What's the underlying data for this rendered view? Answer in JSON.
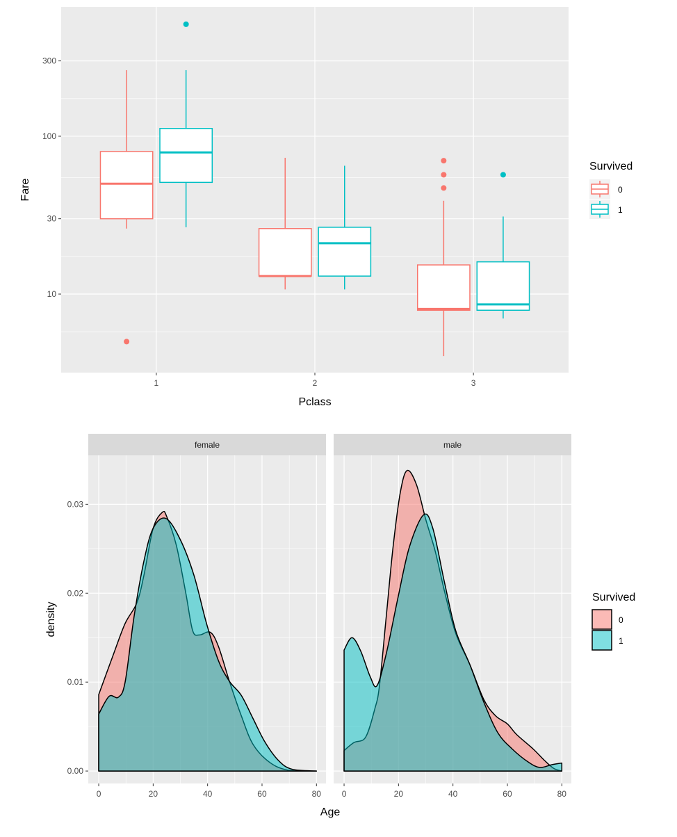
{
  "chart_data": [
    {
      "type": "boxplot",
      "xlabel": "Pclass",
      "ylabel": "Fare",
      "y_scale": "log10",
      "ylim": [
        3.18,
        659
      ],
      "y_breaks": [
        10,
        30,
        100,
        300
      ],
      "y_tick_labels": [
        "10",
        "30",
        "100",
        "300"
      ],
      "categories": [
        "1",
        "2",
        "3"
      ],
      "grid": true,
      "legend": {
        "title": "Survived",
        "position": "right",
        "entries": [
          "0",
          "1"
        ]
      },
      "colors": {
        "0": "#F8766D",
        "1": "#00BFC4"
      },
      "series": [
        {
          "name": "0",
          "boxes": [
            {
              "category": "1",
              "lower": 26,
              "q1": 30,
              "median": 50,
              "q3": 80,
              "upper": 262,
              "outliers": [
                5.0
              ]
            },
            {
              "category": "2",
              "lower": 10.7,
              "q1": 13,
              "median": 13,
              "q3": 26,
              "upper": 73,
              "outliers": []
            },
            {
              "category": "3",
              "lower": 4.05,
              "q1": 7.9,
              "median": 8.05,
              "q3": 15.3,
              "upper": 39,
              "outliers": [
                47,
                57,
                70
              ]
            }
          ]
        },
        {
          "name": "1",
          "boxes": [
            {
              "category": "1",
              "lower": 26.5,
              "q1": 51,
              "median": 79,
              "q3": 112,
              "upper": 262,
              "outliers": [
                512
              ]
            },
            {
              "category": "2",
              "lower": 10.7,
              "q1": 13,
              "median": 21,
              "q3": 26.5,
              "upper": 65,
              "outliers": []
            },
            {
              "category": "3",
              "lower": 7.0,
              "q1": 7.9,
              "median": 8.6,
              "q3": 16,
              "upper": 31,
              "outliers": [
                57
              ]
            }
          ]
        }
      ]
    },
    {
      "type": "area",
      "subtype": "density",
      "xlabel": "Age",
      "ylabel": "density",
      "xlim": [
        -3.84,
        83.5
      ],
      "ylim": [
        -0.0014,
        0.0355
      ],
      "x_breaks": [
        0,
        20,
        40,
        60,
        80
      ],
      "x_tick_labels": [
        "0",
        "20",
        "40",
        "60",
        "80"
      ],
      "y_breaks": [
        0,
        0.01,
        0.02,
        0.03
      ],
      "y_tick_labels": [
        "0.00",
        "0.01",
        "0.02",
        "0.03"
      ],
      "grid": true,
      "legend": {
        "title": "Survived",
        "position": "right",
        "entries": [
          "0",
          "1"
        ]
      },
      "colors": {
        "0": "#F8766D",
        "1": "#00BFC4",
        "outline": "#000000"
      },
      "fill_alpha": 0.5,
      "facets": [
        {
          "label": "female",
          "series": [
            {
              "name": "0",
              "x": [
                0,
                5.5,
                9.7,
                14,
                16.6,
                20,
                23.4,
                25,
                28.5,
                32,
                34.5,
                37,
                41,
                44,
                48,
                52.4,
                56.7,
                62.7,
                69.5,
                80
              ],
              "y": [
                0.0086,
                0.0132,
                0.0166,
                0.0189,
                0.022,
                0.0273,
                0.0291,
                0.0286,
                0.0254,
                0.02,
                0.0158,
                0.0153,
                0.0156,
                0.014,
                0.0101,
                0.0062,
                0.003,
                0.001,
                0.0001,
                0
              ]
            },
            {
              "name": "1",
              "x": [
                0,
                3.8,
                7.2,
                9.7,
                13,
                16.6,
                20,
                24.7,
                30,
                35,
                39.6,
                44,
                48,
                52.4,
                56.7,
                61,
                66,
                71,
                80
              ],
              "y": [
                0.0064,
                0.0084,
                0.0083,
                0.01,
                0.0174,
                0.0236,
                0.0273,
                0.0284,
                0.026,
                0.022,
                0.0166,
                0.0124,
                0.0101,
                0.0085,
                0.0059,
                0.0033,
                0.0012,
                0.0002,
                0
              ]
            }
          ]
        },
        {
          "label": "male",
          "series": [
            {
              "name": "0",
              "x": [
                0,
                3.6,
                7.9,
                11.3,
                13,
                15.5,
                18,
                20.7,
                23.2,
                26.6,
                30,
                33.5,
                36.9,
                41,
                46.3,
                51.4,
                55.7,
                60,
                63.4,
                69.4,
                73.6,
                77,
                80
              ],
              "y": [
                0.0023,
                0.0032,
                0.0038,
                0.007,
                0.0096,
                0.0174,
                0.0252,
                0.0314,
                0.0338,
                0.0322,
                0.0283,
                0.0247,
                0.0202,
                0.0155,
                0.0119,
                0.008,
                0.0062,
                0.0053,
                0.0041,
                0.0025,
                0.0012,
                0.0003,
                0
              ]
            },
            {
              "name": "1",
              "x": [
                0,
                2.9,
                6.1,
                9.6,
                12.1,
                15.5,
                19.8,
                24,
                29.2,
                32.6,
                36.9,
                41,
                46.3,
                51.4,
                56.5,
                61.7,
                67.7,
                71.9,
                76.2,
                80
              ],
              "y": [
                0.0136,
                0.015,
                0.0135,
                0.0106,
                0.0096,
                0.0132,
                0.0195,
                0.0252,
                0.0288,
                0.0273,
                0.0212,
                0.0158,
                0.0119,
                0.0077,
                0.0043,
                0.0025,
                0.001,
                0.0004,
                0.0007,
                0.0009
              ]
            }
          ]
        }
      ]
    }
  ]
}
